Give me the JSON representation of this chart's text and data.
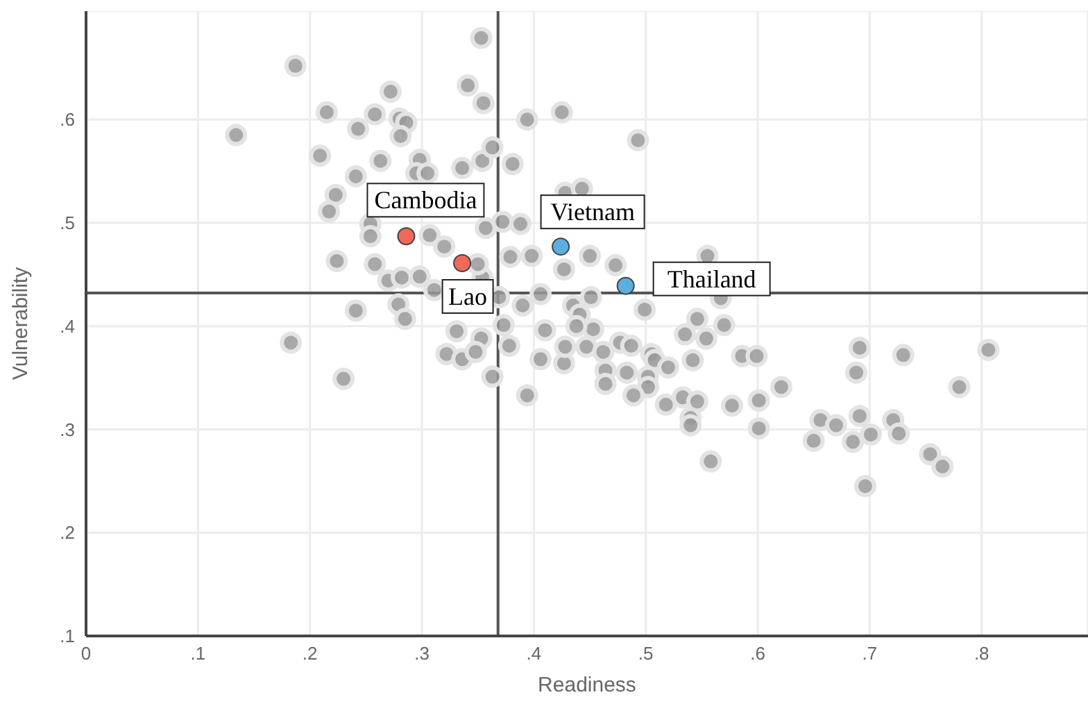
{
  "chart_data": {
    "type": "scatter",
    "xlabel": "Readiness",
    "ylabel": "Vulnerability",
    "xlim": [
      0,
      0.895
    ],
    "ylim": [
      0.1,
      0.705
    ],
    "xticks": [
      0,
      {
        "value": 0.1,
        "label": ".1"
      },
      {
        "value": 0.2,
        "label": ".2"
      },
      {
        "value": 0.3,
        "label": ".3"
      },
      {
        "value": 0.4,
        "label": ".4"
      },
      {
        "value": 0.5,
        "label": ".5"
      },
      {
        "value": 0.6,
        "label": ".6"
      },
      {
        "value": 0.7,
        "label": ".7"
      },
      {
        "value": 0.8,
        "label": ".8"
      }
    ],
    "yticks": [
      {
        "value": 0.1,
        "label": ".1"
      },
      {
        "value": 0.2,
        "label": ".2"
      },
      {
        "value": 0.3,
        "label": ".3"
      },
      {
        "value": 0.4,
        "label": ".4"
      },
      {
        "value": 0.5,
        "label": ".5"
      },
      {
        "value": 0.6,
        "label": ".6"
      }
    ],
    "grid": true,
    "marker": "circle",
    "legend": false,
    "ref_lines": [
      {
        "axis": "x",
        "value": 0.368,
        "color": "#555555"
      },
      {
        "axis": "y",
        "value": 0.432,
        "color": "#555555"
      }
    ],
    "series": [
      {
        "color": "#999999",
        "x": [
          0.187,
          0.134,
          0.215,
          0.258,
          0.272,
          0.28,
          0.286,
          0.281,
          0.243,
          0.209,
          0.263,
          0.298,
          0.295,
          0.305,
          0.336,
          0.354,
          0.363,
          0.241,
          0.223,
          0.217,
          0.254,
          0.254,
          0.307,
          0.32,
          0.357,
          0.224,
          0.258,
          0.27,
          0.282,
          0.298,
          0.311,
          0.354,
          0.369,
          0.241,
          0.279,
          0.285,
          0.341,
          0.355,
          0.353,
          0.394,
          0.425,
          0.493,
          0.381,
          0.428,
          0.443,
          0.372,
          0.388,
          0.379,
          0.398,
          0.427,
          0.45,
          0.473,
          0.555,
          0.35,
          0.406,
          0.39,
          0.435,
          0.451,
          0.441,
          0.453,
          0.41,
          0.438,
          0.373,
          0.353,
          0.378,
          0.406,
          0.427,
          0.428,
          0.447,
          0.462,
          0.477,
          0.487,
          0.464,
          0.464,
          0.483,
          0.505,
          0.508,
          0.52,
          0.502,
          0.502,
          0.489,
          0.363,
          0.394,
          0.499,
          0.535,
          0.546,
          0.554,
          0.567,
          0.57,
          0.542,
          0.518,
          0.533,
          0.546,
          0.54,
          0.54,
          0.577,
          0.558,
          0.586,
          0.599,
          0.601,
          0.601,
          0.183,
          0.23,
          0.331,
          0.322,
          0.336,
          0.348,
          0.691,
          0.73,
          0.806,
          0.688,
          0.621,
          0.78,
          0.656,
          0.67,
          0.65,
          0.691,
          0.685,
          0.701,
          0.721,
          0.726,
          0.754,
          0.765,
          0.696
        ],
        "values": [
          0.652,
          0.585,
          0.607,
          0.605,
          0.627,
          0.601,
          0.597,
          0.584,
          0.591,
          0.565,
          0.56,
          0.561,
          0.548,
          0.548,
          0.553,
          0.56,
          0.573,
          0.545,
          0.527,
          0.511,
          0.499,
          0.487,
          0.488,
          0.477,
          0.495,
          0.463,
          0.46,
          0.444,
          0.447,
          0.448,
          0.435,
          0.447,
          0.428,
          0.415,
          0.421,
          0.407,
          0.633,
          0.616,
          0.679,
          0.6,
          0.607,
          0.58,
          0.557,
          0.529,
          0.533,
          0.501,
          0.499,
          0.467,
          0.468,
          0.455,
          0.468,
          0.459,
          0.468,
          0.46,
          0.431,
          0.42,
          0.42,
          0.428,
          0.411,
          0.397,
          0.396,
          0.4,
          0.401,
          0.388,
          0.381,
          0.368,
          0.364,
          0.38,
          0.38,
          0.375,
          0.384,
          0.381,
          0.357,
          0.344,
          0.355,
          0.373,
          0.367,
          0.36,
          0.351,
          0.341,
          0.333,
          0.351,
          0.333,
          0.416,
          0.392,
          0.407,
          0.388,
          0.427,
          0.401,
          0.367,
          0.324,
          0.331,
          0.327,
          0.311,
          0.304,
          0.323,
          0.269,
          0.371,
          0.371,
          0.328,
          0.301,
          0.384,
          0.349,
          0.395,
          0.373,
          0.368,
          0.375,
          0.379,
          0.372,
          0.377,
          0.355,
          0.341,
          0.341,
          0.309,
          0.304,
          0.289,
          0.313,
          0.288,
          0.295,
          0.309,
          0.296,
          0.276,
          0.264,
          0.245
        ]
      },
      {
        "color": "#f0695a",
        "x": [
          0.286,
          0.336
        ],
        "values": [
          0.487,
          0.461
        ]
      },
      {
        "color": "#5aaee0",
        "x": [
          0.424,
          0.482
        ],
        "values": [
          0.477,
          0.439
        ]
      }
    ],
    "annotations": [
      {
        "text": "Cambodia",
        "x": 0.286,
        "y": 0.487
      },
      {
        "text": "Lao",
        "x": 0.336,
        "y": 0.461
      },
      {
        "text": "Vietnam",
        "x": 0.424,
        "y": 0.477
      },
      {
        "text": "Thailand",
        "x": 0.482,
        "y": 0.439
      }
    ]
  }
}
